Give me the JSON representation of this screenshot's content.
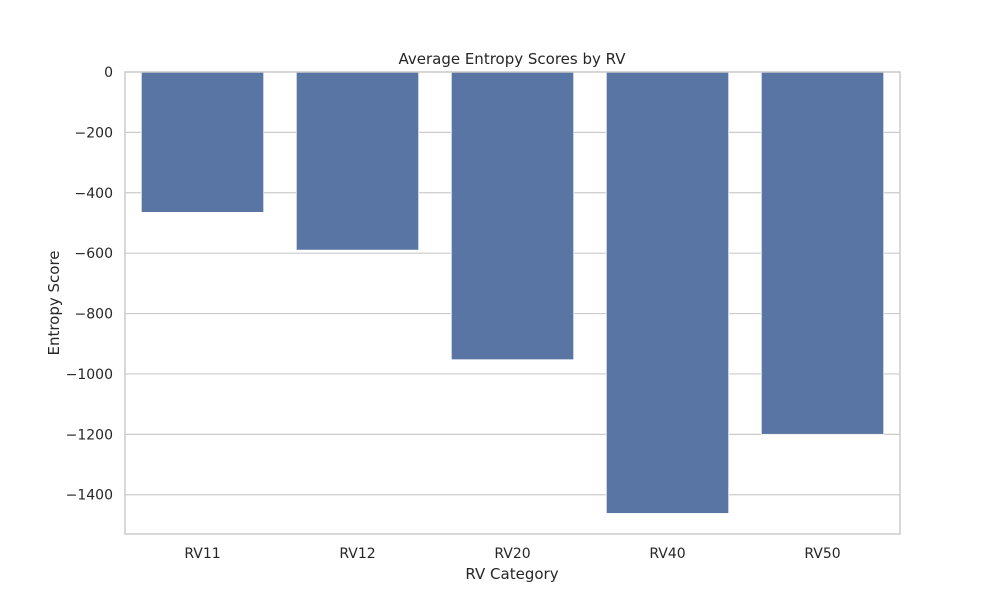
{
  "chart_data": {
    "type": "bar",
    "title": "Average Entropy Scores by RV",
    "xlabel": "RV Category",
    "ylabel": "Entropy Score",
    "categories": [
      "RV11",
      "RV12",
      "RV20",
      "RV40",
      "RV50"
    ],
    "values": [
      -465,
      -590,
      -953,
      -1462,
      -1200
    ],
    "ylim": [
      -1530,
      0
    ],
    "yticks": [
      0,
      -200,
      -400,
      -600,
      -800,
      -1000,
      -1200,
      -1400
    ],
    "ytick_labels": [
      "0",
      "−200",
      "−400",
      "−600",
      "−800",
      "−1000",
      "−1200",
      "−1400"
    ],
    "grid": "horizontal",
    "bar_color": "#5975a4",
    "grid_color": "#cccccc",
    "text_color": "#262626"
  }
}
